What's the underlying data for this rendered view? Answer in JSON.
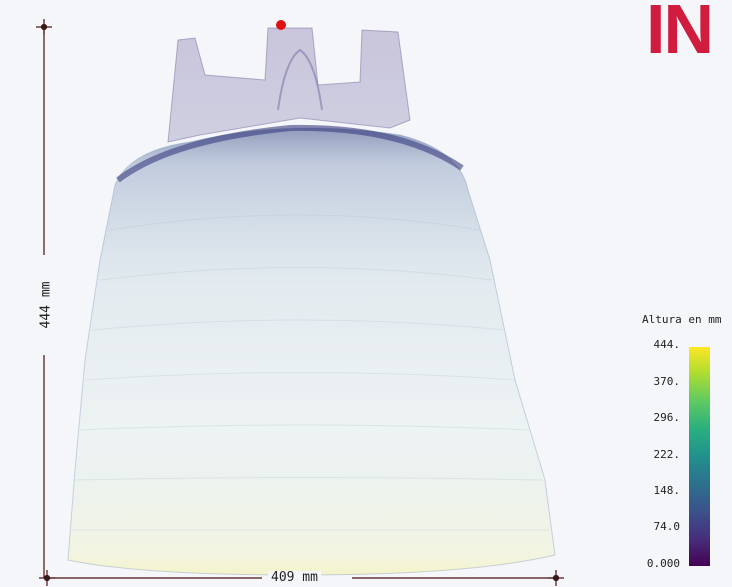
{
  "viewer": {
    "logo_text": "IN",
    "logo_color": "#d01c3f",
    "background_color": "#f5f6f9",
    "selected_point_color": "#e01010"
  },
  "dimensions": {
    "width_label": "409 mm",
    "height_label": "444 mm"
  },
  "legend": {
    "title": "Altura en mm",
    "ticks": [
      "444.",
      "370.",
      "296.",
      "222.",
      "148.",
      "74.0",
      "0.000"
    ],
    "colormap": "viridis"
  }
}
